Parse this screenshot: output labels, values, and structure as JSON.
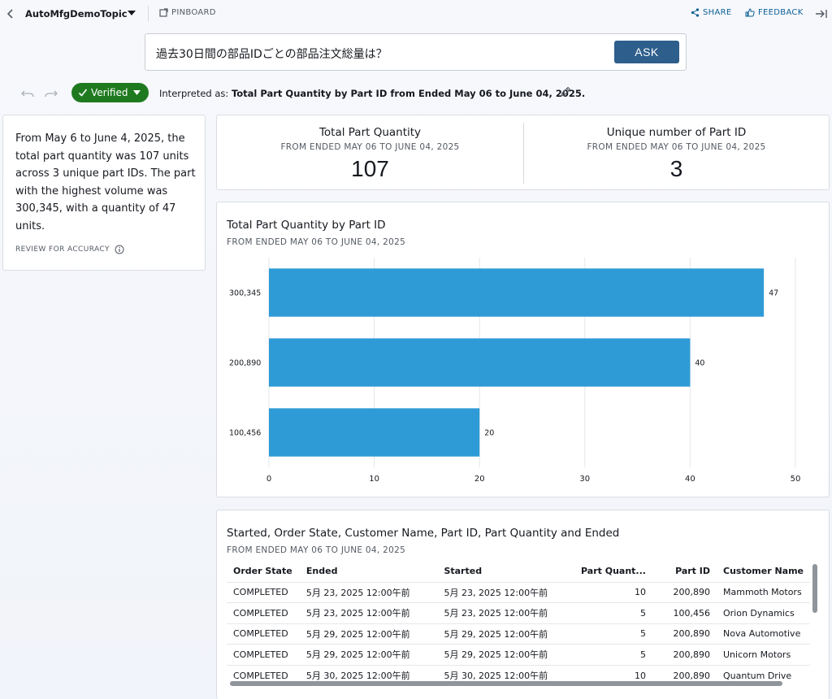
{
  "header": {
    "topic_name": "AutoMfgDemoTopic",
    "pinboard_label": "PINBOARD",
    "share_label": "SHARE",
    "feedback_label": "FEEDBACK"
  },
  "question": {
    "text": "過去30日間の部品IDごとの部品注文総量は？",
    "ask_label": "ASK"
  },
  "interpretation": {
    "verified_label": "Verified",
    "prefix": "Interpreted as:",
    "text": "Total Part Quantity by Part ID from Ended May 06 to June 04, 2025."
  },
  "summary": {
    "text": "From May 6 to June 4, 2025, the total part quantity was 107 units across 3 unique part IDs. The part with the highest volume was 300,345, with a quantity of 47 units.",
    "review_label": "REVIEW FOR ACCURACY"
  },
  "kpis": [
    {
      "title": "Total Part Quantity",
      "subtitle": "FROM ENDED MAY 06 TO JUNE 04, 2025",
      "value": "107"
    },
    {
      "title": "Unique number of Part ID",
      "subtitle": "FROM ENDED MAY 06 TO JUNE 04, 2025",
      "value": "3"
    }
  ],
  "chart_data": {
    "type": "bar",
    "orientation": "horizontal",
    "title": "Total Part Quantity by Part ID",
    "subtitle": "FROM ENDED MAY 06 TO JUNE 04, 2025",
    "categories": [
      "300,345",
      "200,890",
      "100,456"
    ],
    "values": [
      47,
      40,
      20
    ],
    "xlim": [
      0,
      50
    ],
    "xticks": [
      0,
      10,
      20,
      30,
      40,
      50
    ],
    "grid": true,
    "color": "#2f9bd6"
  },
  "table": {
    "title": "Started, Order State, Customer Name, Part ID, Part Quantity and Ended",
    "subtitle": "FROM ENDED MAY 06 TO JUNE 04, 2025",
    "columns": [
      "Order State",
      "Ended",
      "Started",
      "Part Quant...",
      "Part ID",
      "Customer Name"
    ],
    "rows": [
      [
        "COMPLETED",
        "5月 23, 2025 12:00午前",
        "5月 23, 2025 12:00午前",
        "10",
        "200,890",
        "Mammoth Motors"
      ],
      [
        "COMPLETED",
        "5月 23, 2025 12:00午前",
        "5月 23, 2025 12:00午前",
        "5",
        "100,456",
        "Orion Dynamics"
      ],
      [
        "COMPLETED",
        "5月 29, 2025 12:00午前",
        "5月 29, 2025 12:00午前",
        "5",
        "200,890",
        "Nova Automotive"
      ],
      [
        "COMPLETED",
        "5月 29, 2025 12:00午前",
        "5月 29, 2025 12:00午前",
        "5",
        "200,890",
        "Unicorn Motors"
      ],
      [
        "COMPLETED",
        "5月 30, 2025 12:00午前",
        "5月 30, 2025 12:00午前",
        "10",
        "200,890",
        "Quantum Drive"
      ]
    ]
  },
  "colors": {
    "ask_button": "#2e5e8c",
    "verified_badge": "#1f7a1f",
    "link": "#0a5f96",
    "bar": "#2f9bd6"
  },
  "icons": [
    "back-icon",
    "chevron-down-icon",
    "pinboard-icon",
    "share-icon",
    "feedback-icon",
    "collapse-panel-icon",
    "undo-icon",
    "redo-icon",
    "check-icon",
    "edit-pencil-icon",
    "info-icon"
  ]
}
